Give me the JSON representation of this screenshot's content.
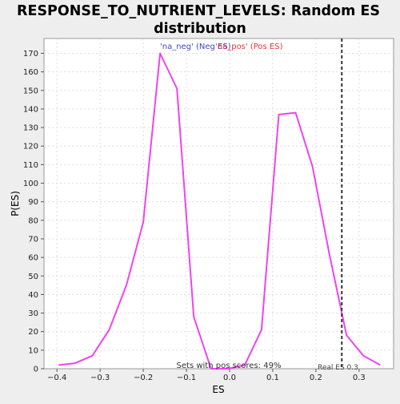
{
  "chart_data": {
    "type": "line",
    "title": "RESPONSE_TO_NUTRIENT_LEVELS: Random ES distribution",
    "title_lines": [
      "RESPONSE_TO_NUTRIENT_LEVELS: Random ES",
      "distribution"
    ],
    "xlabel": "ES",
    "ylabel": "P(ES)",
    "xlim": [
      -0.43,
      0.38
    ],
    "ylim": [
      0,
      178
    ],
    "x_ticks": [
      -0.4,
      -0.3,
      -0.2,
      -0.1,
      0.0,
      0.1,
      0.2,
      0.3
    ],
    "x_tick_labels": [
      "−0.4",
      "−0.3",
      "−0.2",
      "−0.1",
      "0.0",
      "0.1",
      "0.2",
      "0.3"
    ],
    "y_ticks": [
      0,
      10,
      20,
      30,
      40,
      50,
      60,
      70,
      80,
      90,
      100,
      110,
      120,
      130,
      140,
      150,
      160,
      170
    ],
    "grid": true,
    "series": [
      {
        "color": "#ee44ee",
        "x": [
          -0.396,
          -0.358,
          -0.318,
          -0.279,
          -0.239,
          -0.2,
          -0.161,
          -0.122,
          -0.083,
          -0.043,
          -0.004,
          0.035,
          0.074,
          0.114,
          0.153,
          0.192,
          0.231,
          0.271,
          0.31,
          0.349
        ],
        "y": [
          2,
          3,
          7,
          21,
          45,
          79,
          170,
          151,
          28,
          0,
          0,
          2,
          21,
          137,
          138,
          109,
          62,
          18,
          7,
          2
        ]
      }
    ],
    "legend": {
      "placement": "top",
      "entries": [
        {
          "label": "'na_neg' (Neg ES)",
          "color": "#4444cc"
        },
        {
          "label": "'na_pos' (Pos ES)",
          "color": "#ee3333"
        }
      ]
    },
    "real_es": {
      "x": 0.26,
      "label": "Real ES 0.3"
    },
    "annotation": "Sets with pos scores: 49%"
  }
}
